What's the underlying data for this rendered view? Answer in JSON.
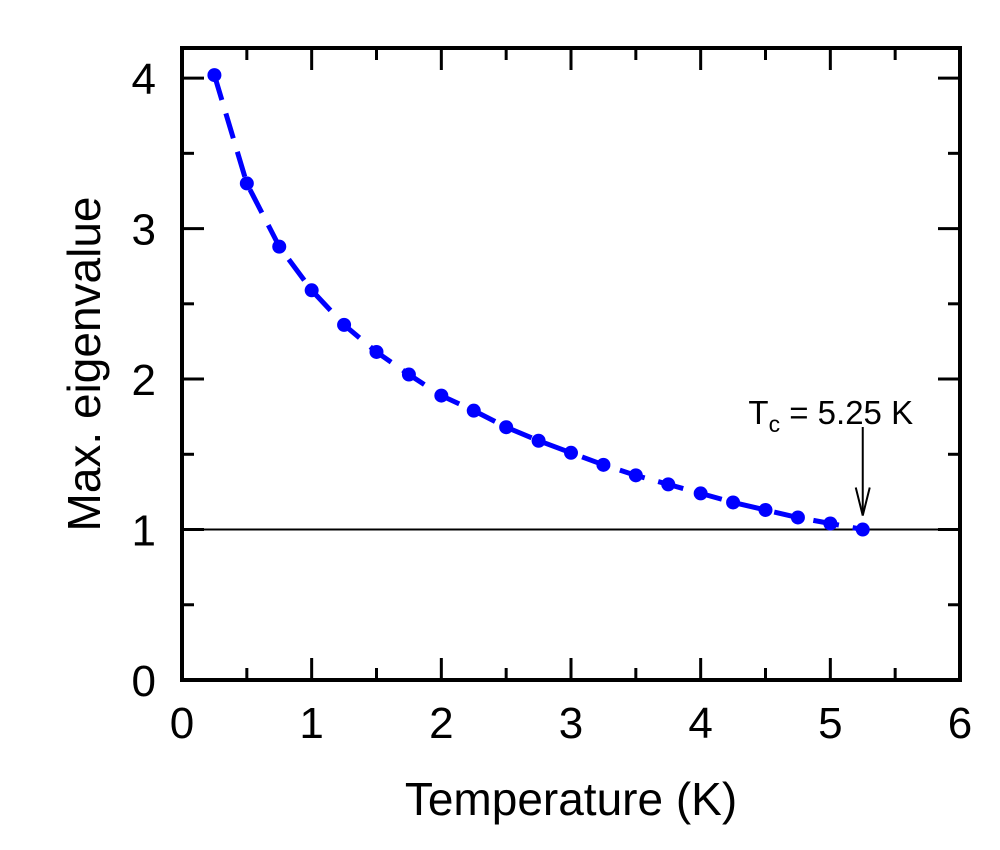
{
  "chart_data": {
    "type": "scatter",
    "xlabel": "Temperature (K)",
    "ylabel": "Max. eigenvalue",
    "xlim": [
      0,
      6
    ],
    "ylim": [
      0,
      4.2
    ],
    "x_ticks": [
      "0",
      "1",
      "2",
      "3",
      "4",
      "5",
      "6"
    ],
    "y_ticks": [
      "0",
      "1",
      "2",
      "3",
      "4"
    ],
    "grid": false,
    "colors": {
      "series": "#0000ff",
      "axes": "#000000"
    },
    "series": [
      {
        "x": [
          0.25,
          0.5,
          0.75,
          1.0,
          1.25,
          1.5,
          1.75,
          2.0,
          2.25,
          2.5,
          2.75,
          3.0,
          3.25,
          3.5,
          3.75,
          4.0,
          4.25,
          4.5,
          4.75,
          5.0,
          5.25
        ],
        "values": [
          4.02,
          3.3,
          2.88,
          2.59,
          2.36,
          2.18,
          2.03,
          1.89,
          1.79,
          1.68,
          1.59,
          1.51,
          1.43,
          1.36,
          1.3,
          1.24,
          1.18,
          1.13,
          1.08,
          1.04,
          1.0
        ],
        "line_style": "dashed",
        "marker": "circle"
      }
    ],
    "reference_line": {
      "y": 1
    },
    "annotation": {
      "prefix": "T",
      "subscript": "c",
      "suffix": " = 5.25 K",
      "x": 5.25,
      "y": 1.0
    }
  }
}
